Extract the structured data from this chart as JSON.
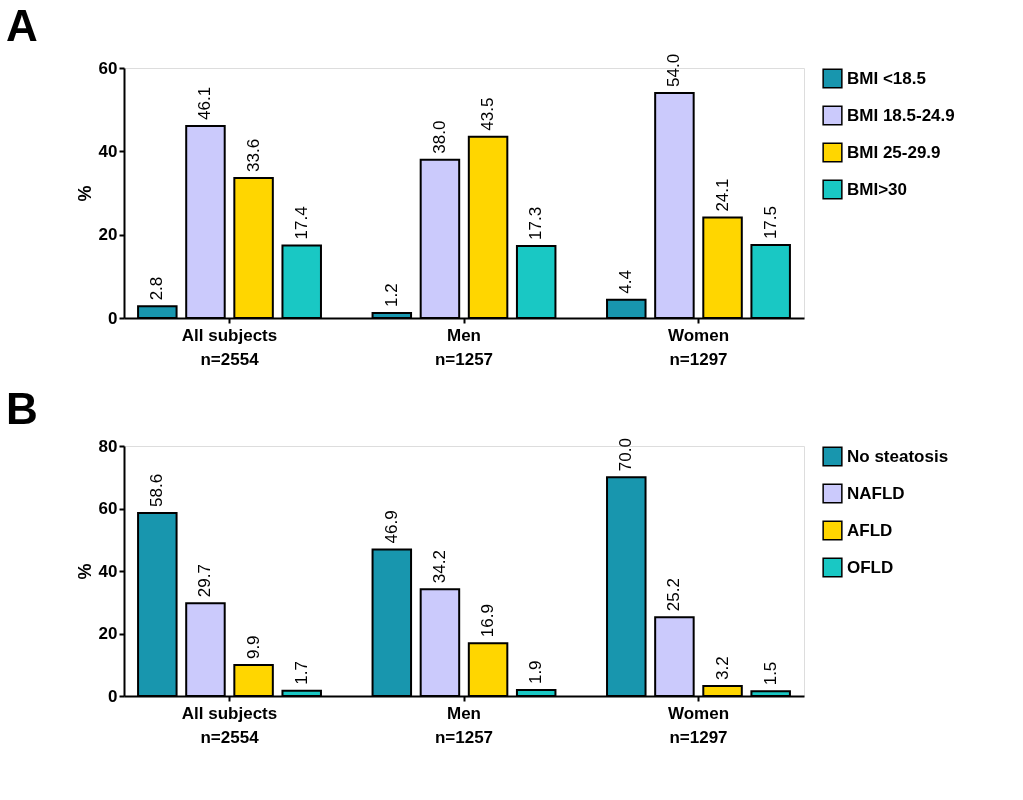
{
  "chart_data": [
    {
      "type": "bar",
      "title": "A",
      "ylabel": "%",
      "categories": [
        "All subjects\nn=2554",
        "Men\nn=1257",
        "Women\nn=1297"
      ],
      "series": [
        {
          "name": "BMI <18.5",
          "color": "#1896ae",
          "values": [
            2.8,
            1.2,
            4.4
          ],
          "value_labels": [
            "2.8",
            "1.2",
            "4.4"
          ]
        },
        {
          "name": "BMI 18.5-24.9",
          "color": "#cbcafc",
          "values": [
            46.1,
            38.0,
            54.0
          ],
          "value_labels": [
            "46.1",
            "38.0",
            "54.0"
          ]
        },
        {
          "name": "BMI 25-29.9",
          "color": "#ffd600",
          "values": [
            33.6,
            43.5,
            24.1
          ],
          "value_labels": [
            "33.6",
            "43.5",
            "24.1"
          ]
        },
        {
          "name": "BMI>30",
          "color": "#19c8c4",
          "values": [
            17.4,
            17.3,
            17.5
          ],
          "value_labels": [
            "17.4",
            "17.3",
            "17.5"
          ]
        }
      ],
      "ylim": [
        0,
        60
      ],
      "yticks": [
        0,
        20,
        40,
        60
      ],
      "legend": "right",
      "grid": false
    },
    {
      "type": "bar",
      "title": "B",
      "ylabel": "%",
      "categories": [
        "All subjects\nn=2554",
        "Men\nn=1257",
        "Women\nn=1297"
      ],
      "series": [
        {
          "name": "No steatosis",
          "color": "#1896ae",
          "values": [
            58.6,
            46.9,
            70.0
          ],
          "value_labels": [
            "58.6",
            "46.9",
            "70.0"
          ]
        },
        {
          "name": "NAFLD",
          "color": "#cbcafc",
          "values": [
            29.7,
            34.2,
            25.2
          ],
          "value_labels": [
            "29.7",
            "34.2",
            "25.2"
          ]
        },
        {
          "name": "AFLD",
          "color": "#ffd600",
          "values": [
            9.9,
            16.9,
            3.2
          ],
          "value_labels": [
            "9.9",
            "16.9",
            "3.2"
          ]
        },
        {
          "name": "OFLD",
          "color": "#19c8c4",
          "values": [
            1.7,
            1.9,
            1.5
          ],
          "value_labels": [
            "1.7",
            "1.9",
            "1.5"
          ]
        }
      ],
      "ylim": [
        0,
        80
      ],
      "yticks": [
        0,
        20,
        40,
        60,
        80
      ],
      "legend": "right",
      "grid": false
    }
  ]
}
